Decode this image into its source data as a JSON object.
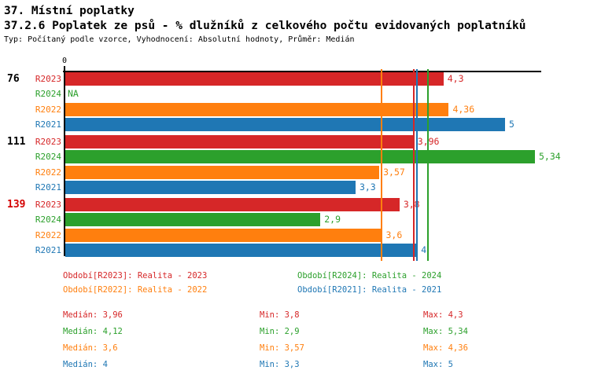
{
  "header": {
    "title_line1": "37. Místní poplatky",
    "title_line2": "37.2.6 Poplatek ze psů - % dlužníků z celkového počtu evidovaných poplatníků",
    "subtitle": "Typ: Počítaný podle vzorce, Vyhodnocení: Absolutní hodnoty, Průměr: Medián"
  },
  "palette": {
    "R2023": "#d62728",
    "R2024": "#2ca02c",
    "R2022": "#ff7f0e",
    "R2021": "#1f77b4",
    "axis": "#000000",
    "highlight_group_label": "#d40000"
  },
  "chart_data": {
    "type": "bar",
    "orientation": "horizontal",
    "xlim": [
      0,
      5.5
    ],
    "zero_label": "0",
    "grid": false,
    "series_order": [
      "R2023",
      "R2024",
      "R2022",
      "R2021"
    ],
    "groups": [
      {
        "label": "76",
        "label_color": "#000000",
        "bars": [
          {
            "series": "R2023",
            "value": 4.3,
            "display": "4,3"
          },
          {
            "series": "R2024",
            "value": null,
            "display": "NA"
          },
          {
            "series": "R2022",
            "value": 4.36,
            "display": "4,36"
          },
          {
            "series": "R2021",
            "value": 5,
            "display": "5"
          }
        ]
      },
      {
        "label": "111",
        "label_color": "#000000",
        "bars": [
          {
            "series": "R2023",
            "value": 3.96,
            "display": "3,96"
          },
          {
            "series": "R2024",
            "value": 5.34,
            "display": "5,34"
          },
          {
            "series": "R2022",
            "value": 3.57,
            "display": "3,57"
          },
          {
            "series": "R2021",
            "value": 3.3,
            "display": "3,3"
          }
        ]
      },
      {
        "label": "139",
        "label_color": "#d40000",
        "bars": [
          {
            "series": "R2023",
            "value": 3.8,
            "display": "3,8"
          },
          {
            "series": "R2024",
            "value": 2.9,
            "display": "2,9"
          },
          {
            "series": "R2022",
            "value": 3.6,
            "display": "3,6"
          },
          {
            "series": "R2021",
            "value": 4,
            "display": "4"
          }
        ]
      }
    ],
    "median_lines": [
      {
        "series": "R2022",
        "value": 3.6
      },
      {
        "series": "R2023",
        "value": 3.96
      },
      {
        "series": "R2021",
        "value": 4
      },
      {
        "series": "R2024",
        "value": 4.12
      }
    ]
  },
  "legend": {
    "items": [
      {
        "series": "R2023",
        "text": "Období[R2023]: Realita - 2023"
      },
      {
        "series": "R2024",
        "text": "Období[R2024]: Realita - 2024"
      },
      {
        "series": "R2022",
        "text": "Období[R2022]: Realita - 2022"
      },
      {
        "series": "R2021",
        "text": "Období[R2021]: Realita - 2021"
      }
    ]
  },
  "stats": {
    "rows": [
      {
        "series": "R2023",
        "median": "Medián: 3,96",
        "min": "Min: 3,8",
        "max": "Max: 4,3"
      },
      {
        "series": "R2024",
        "median": "Medián: 4,12",
        "min": "Min: 2,9",
        "max": "Max: 5,34"
      },
      {
        "series": "R2022",
        "median": "Medián: 3,6",
        "min": "Min: 3,57",
        "max": "Max: 4,36"
      },
      {
        "series": "R2021",
        "median": "Medián: 4",
        "min": "Min: 3,3",
        "max": "Max: 5"
      }
    ]
  }
}
